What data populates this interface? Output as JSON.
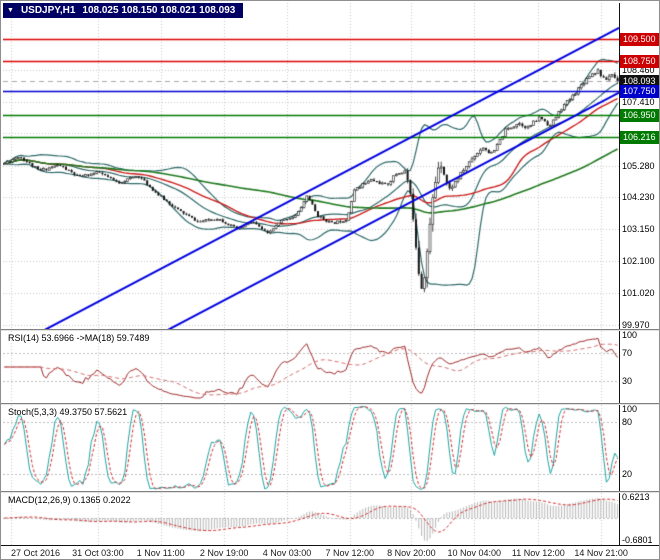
{
  "title_bar": {
    "symbol": "USDJPY,H1",
    "ohlc": "108.025 108.150 108.021 108.093"
  },
  "chart_data": {
    "type": "candlestick",
    "symbol": "USDJPY",
    "timeframe": "H1",
    "open": "108.025",
    "high": "108.150",
    "low": "108.021",
    "close": "108.093",
    "last_price": 108.093,
    "price_axis": {
      "min": 99.83,
      "max": 110.7,
      "tick_labels": [
        "108.460",
        "107.410",
        "105.280",
        "104.230",
        "103.150",
        "102.100",
        "101.020",
        "99.970"
      ],
      "grid_prices": [
        109.51,
        108.46,
        107.41,
        106.36,
        105.28,
        104.23,
        103.15,
        102.1,
        101.02,
        99.97
      ]
    },
    "levels": [
      {
        "price": 109.5,
        "label": "109.500",
        "line_color": "#dd0000",
        "badge_color": "#cc0000",
        "style": "solid"
      },
      {
        "price": 108.75,
        "label": "108.750",
        "line_color": "#dd0000",
        "badge_color": "#cc0000",
        "style": "solid"
      },
      {
        "price": 108.093,
        "label": "108.093",
        "line_color": "#a8a8a8",
        "badge_color": "#111111",
        "style": "dashed"
      },
      {
        "price": 107.75,
        "label": "107.750",
        "line_color": "#0000d0",
        "badge_color": "#0000cc",
        "style": "solid"
      },
      {
        "price": 106.95,
        "label": "106.950",
        "line_color": "#007d00",
        "badge_color": "#007a00",
        "style": "solid"
      },
      {
        "price": 106.216,
        "label": "106.216",
        "line_color": "#007d00",
        "badge_color": "#007a00",
        "style": "solid"
      }
    ],
    "trendlines": [
      {
        "p1": 99.07,
        "p2": 109.87,
        "color": "#0000e0",
        "width": 2
      },
      {
        "p1": 96.91,
        "p2": 107.71,
        "color": "#0000e0",
        "width": 2
      }
    ],
    "candles": {
      "count": 220,
      "seed": 11,
      "anchors": [
        [
          0.0,
          105.35
        ],
        [
          0.024,
          105.6
        ],
        [
          0.057,
          105.1
        ],
        [
          0.089,
          105.3
        ],
        [
          0.121,
          104.9
        ],
        [
          0.154,
          105.05
        ],
        [
          0.186,
          104.7
        ],
        [
          0.218,
          104.95
        ],
        [
          0.251,
          104.3
        ],
        [
          0.283,
          103.8
        ],
        [
          0.316,
          103.4
        ],
        [
          0.348,
          103.52
        ],
        [
          0.38,
          103.15
        ],
        [
          0.404,
          103.42
        ],
        [
          0.429,
          103.0
        ],
        [
          0.453,
          103.45
        ],
        [
          0.477,
          103.62
        ],
        [
          0.494,
          104.3
        ],
        [
          0.51,
          103.62
        ],
        [
          0.534,
          103.35
        ],
        [
          0.558,
          103.48
        ],
        [
          0.572,
          104.52
        ],
        [
          0.599,
          104.8
        ],
        [
          0.623,
          104.62
        ],
        [
          0.639,
          105.0
        ],
        [
          0.655,
          105.1
        ],
        [
          0.667,
          103.6
        ],
        [
          0.675,
          101.95
        ],
        [
          0.681,
          101.25
        ],
        [
          0.691,
          102.6
        ],
        [
          0.7,
          104.4
        ],
        [
          0.71,
          105.55
        ],
        [
          0.725,
          104.45
        ],
        [
          0.741,
          104.9
        ],
        [
          0.76,
          105.45
        ],
        [
          0.78,
          105.9
        ],
        [
          0.796,
          105.65
        ],
        [
          0.817,
          106.45
        ],
        [
          0.838,
          106.7
        ],
        [
          0.854,
          106.55
        ],
        [
          0.874,
          106.9
        ],
        [
          0.89,
          106.6
        ],
        [
          0.909,
          107.2
        ],
        [
          0.925,
          107.55
        ],
        [
          0.938,
          107.9
        ],
        [
          0.955,
          108.3
        ],
        [
          0.968,
          108.45
        ],
        [
          0.979,
          108.1
        ],
        [
          0.99,
          108.35
        ],
        [
          1.0,
          108.09
        ]
      ],
      "vol_anchors": [
        [
          0.0,
          0.1
        ],
        [
          0.3,
          0.08
        ],
        [
          0.55,
          0.09
        ],
        [
          0.65,
          0.11
        ],
        [
          0.662,
          0.3
        ],
        [
          0.672,
          0.55
        ],
        [
          0.685,
          0.6
        ],
        [
          0.7,
          0.45
        ],
        [
          0.715,
          0.3
        ],
        [
          0.73,
          0.15
        ],
        [
          0.8,
          0.12
        ],
        [
          1.0,
          0.13
        ]
      ]
    },
    "overlays": {
      "bollinger": {
        "period": 20,
        "deviation": 2,
        "color": "#2f6a6a"
      },
      "ma_fast": {
        "period": 34,
        "color": "#cc1f1f"
      },
      "ma_slow": {
        "period": 96,
        "color": "#1f7a1f"
      }
    },
    "time_axis": {
      "labels": [
        "27 Oct 2016",
        "31 Oct 03:00",
        "1 Nov 11:00",
        "2 Nov 19:00",
        "4 Nov 03:00",
        "7 Nov 12:00",
        "8 Nov 20:00",
        "10 Nov 04:00",
        "11 Nov 12:00",
        "14 Nov 21:00"
      ],
      "fractions": [
        0.013,
        0.154,
        0.256,
        0.359,
        0.461,
        0.563,
        0.663,
        0.765,
        0.869,
        0.971
      ]
    },
    "indicators": {
      "rsi": {
        "label": "RSI(14) 53.6966 ->MA(18) 59.7489",
        "period": 14,
        "ma_period": 18,
        "levels": [
          70,
          30
        ],
        "range": [
          0,
          100
        ],
        "axis_labels": [
          {
            "value": 100,
            "text": "100"
          },
          {
            "value": 70,
            "text": "70"
          },
          {
            "value": 30,
            "text": "30"
          }
        ],
        "color_main": "#9c2b2b",
        "color_signal": "#d46a6a"
      },
      "stoch": {
        "label": "Stoch(5,3,3) 49.3750 57.5621",
        "k": 5,
        "d": 3,
        "slowing": 3,
        "levels": [
          80,
          20
        ],
        "range": [
          0,
          100
        ],
        "axis_labels": [
          {
            "value": 100,
            "text": "100"
          },
          {
            "value": 80,
            "text": "80"
          },
          {
            "value": 20,
            "text": "20"
          }
        ],
        "color_main": "#1fa3a3",
        "color_signal": "#d03030"
      },
      "macd": {
        "label": "MACD(12,26,9) 0.1365 0.2022",
        "fast": 12,
        "slow": 26,
        "signal": 9,
        "range": [
          -0.7,
          0.65
        ],
        "axis_labels": [
          {
            "value": 0.6213,
            "text": "0.6213"
          },
          {
            "value": -0.6801,
            "text": "-0.6801"
          }
        ],
        "color_hist": "#b6b6b6",
        "color_signal": "#d03030"
      }
    }
  },
  "style": {
    "grid": "#c9c9c9",
    "level_dash": "#bdbdbd",
    "bull": "#ffffff",
    "bear": "#161616",
    "wick": "#161616",
    "title_bg": "#000064",
    "axis_text": "#000000"
  }
}
